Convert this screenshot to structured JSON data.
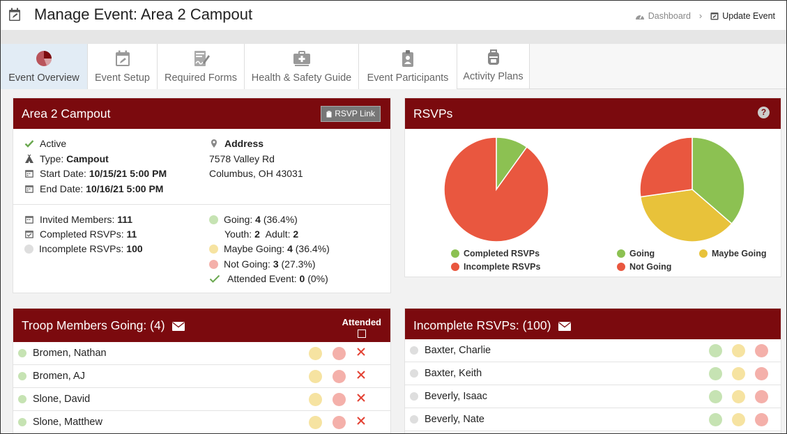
{
  "header": {
    "title": "Manage Event: Area 2 Campout",
    "breadcrumb": {
      "dashboard": "Dashboard",
      "separator": "›",
      "update_event": "Update Event"
    }
  },
  "tabs": [
    {
      "label": "Event Overview",
      "icon": "pie-chart-icon",
      "active": true
    },
    {
      "label": "Event Setup",
      "icon": "calendar-edit-icon",
      "active": false
    },
    {
      "label": "Required Forms",
      "icon": "form-signature-icon",
      "active": false
    },
    {
      "label": "Health & Safety Guide",
      "icon": "first-aid-icon",
      "active": false
    },
    {
      "label": "Event Participants",
      "icon": "participant-badge-icon",
      "active": false
    },
    {
      "label": "Activity Plans",
      "icon": "backpack-icon",
      "active": false
    }
  ],
  "event": {
    "title": "Area 2 Campout",
    "rsvp_link_label": "RSVP Link",
    "status": "Active",
    "type_label": "Type:",
    "type_value": "Campout",
    "start_label": "Start Date:",
    "start_value": "10/15/21 5:00 PM",
    "end_label": "End Date:",
    "end_value": "10/16/21 5:00 PM",
    "address_label": "Address",
    "address_line1": "7578 Valley Rd",
    "address_line2": "Columbus, OH 43031",
    "invited_label": "Invited Members:",
    "invited_value": "111",
    "completed_label": "Completed RSVPs:",
    "completed_value": "11",
    "incomplete_label": "Incomplete RSVPs:",
    "incomplete_value": "100",
    "going_label": "Going:",
    "going_value": "4",
    "going_pct": "(36.4%)",
    "youth_label": "Youth:",
    "youth_value": "2",
    "adult_label": "Adult:",
    "adult_value": "2",
    "maybe_label": "Maybe Going:",
    "maybe_value": "4",
    "maybe_pct": "(36.4%)",
    "notgoing_label": "Not Going:",
    "notgoing_value": "3",
    "notgoing_pct": "(27.3%)",
    "attended_label": "Attended Event:",
    "attended_value": "0",
    "attended_pct": "(0%)"
  },
  "rsvps": {
    "title": "RSVPs",
    "help": "?"
  },
  "chart_data": [
    {
      "type": "pie",
      "title": "",
      "labels": [
        "Completed RSVPs",
        "Incomplete RSVPs"
      ],
      "values": [
        11,
        100
      ],
      "colors": [
        "#8cc152",
        "#e9573f"
      ]
    },
    {
      "type": "pie",
      "title": "",
      "labels": [
        "Going",
        "Maybe Going",
        "Not Going"
      ],
      "values": [
        4,
        4,
        3
      ],
      "colors": [
        "#8cc152",
        "#e8c23a",
        "#e9573f"
      ]
    }
  ],
  "colors": {
    "brand": "#7b0a0e",
    "green": "#8cc152",
    "yellow": "#e8c23a",
    "red": "#e9573f",
    "going_dot": "#c6e3b3",
    "maybe_dot": "#f6e3a1",
    "not_dot": "#f4b0aa",
    "grey_dot": "#dedede",
    "x_red": "#e34234"
  },
  "troop_going": {
    "title": "Troop Members Going: (4)",
    "attended_header": "Attended",
    "members": [
      "Bromen, Nathan",
      "Bromen, AJ",
      "Slone, David",
      "Slone, Matthew"
    ]
  },
  "incomplete": {
    "title": "Incomplete RSVPs: (100)",
    "members": [
      "Baxter, Charlie",
      "Baxter, Keith",
      "Beverly, Isaac",
      "Beverly, Nate"
    ]
  }
}
